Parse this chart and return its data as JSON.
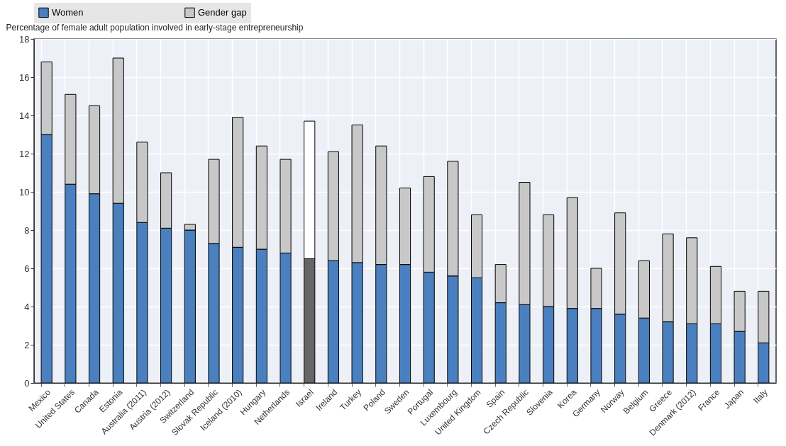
{
  "chart_data": {
    "type": "bar",
    "stacked": true,
    "ylabel": "Percentage of female adult population involved in early-stage entrepreneurship",
    "categories": [
      "Mexico",
      "United States",
      "Canada",
      "Estonia",
      "Australia (2011)",
      "Austria (2012)",
      "Switzerland",
      "Slovak Republic",
      "Iceland (2010)",
      "Hungary",
      "Netherlands",
      "Israel",
      "Ireland",
      "Turkey",
      "Poland",
      "Sweden",
      "Portugal",
      "Luxembourg",
      "United Kingdom",
      "Spain",
      "Czech Republic",
      "Slovenia",
      "Korea",
      "Germany",
      "Norway",
      "Belgium",
      "Greece",
      "Denmark (2012)",
      "France",
      "Japan",
      "Italy"
    ],
    "series": [
      {
        "name": "Women",
        "color": "#4a80c0",
        "colors": [
          "#4a80c0",
          "#4a80c0",
          "#4a80c0",
          "#4a80c0",
          "#4a80c0",
          "#4a80c0",
          "#4a80c0",
          "#4a80c0",
          "#4a80c0",
          "#4a80c0",
          "#4a80c0",
          "#666666",
          "#4a80c0",
          "#4a80c0",
          "#4a80c0",
          "#4a80c0",
          "#4a80c0",
          "#4a80c0",
          "#4a80c0",
          "#4a80c0",
          "#4a80c0",
          "#4a80c0",
          "#4a80c0",
          "#4a80c0",
          "#4a80c0",
          "#4a80c0",
          "#4a80c0",
          "#4a80c0",
          "#4a80c0",
          "#4a80c0",
          "#4a80c0"
        ],
        "values": [
          13.0,
          10.4,
          9.9,
          9.4,
          8.4,
          8.1,
          8.0,
          7.3,
          7.1,
          7.0,
          6.8,
          6.5,
          6.4,
          6.3,
          6.2,
          6.2,
          5.8,
          5.6,
          5.5,
          4.2,
          4.1,
          4.0,
          3.9,
          3.9,
          3.6,
          3.4,
          3.2,
          3.1,
          3.1,
          2.7,
          2.1
        ]
      },
      {
        "name": "Gender gap",
        "color": "#c8c8c8",
        "colors": [
          "#c8c8c8",
          "#c8c8c8",
          "#c8c8c8",
          "#c8c8c8",
          "#c8c8c8",
          "#c8c8c8",
          "#c8c8c8",
          "#c8c8c8",
          "#c8c8c8",
          "#c8c8c8",
          "#c8c8c8",
          "#ffffff",
          "#c8c8c8",
          "#c8c8c8",
          "#c8c8c8",
          "#c8c8c8",
          "#c8c8c8",
          "#c8c8c8",
          "#c8c8c8",
          "#c8c8c8",
          "#c8c8c8",
          "#c8c8c8",
          "#c8c8c8",
          "#c8c8c8",
          "#c8c8c8",
          "#c8c8c8",
          "#c8c8c8",
          "#c8c8c8",
          "#c8c8c8",
          "#c8c8c8",
          "#c8c8c8"
        ],
        "values": [
          3.8,
          4.7,
          4.6,
          7.6,
          4.2,
          2.9,
          0.3,
          4.4,
          6.8,
          5.4,
          4.9,
          7.2,
          5.7,
          7.2,
          6.2,
          4.0,
          5.0,
          6.0,
          3.3,
          2.0,
          6.4,
          4.8,
          5.8,
          2.1,
          5.3,
          3.0,
          4.6,
          4.5,
          3.0,
          2.1,
          2.7
        ]
      }
    ],
    "ylim": [
      0,
      18
    ],
    "yticks": [
      0,
      2,
      4,
      6,
      8,
      10,
      12,
      14,
      16,
      18
    ],
    "grid": true,
    "legend": "top"
  }
}
